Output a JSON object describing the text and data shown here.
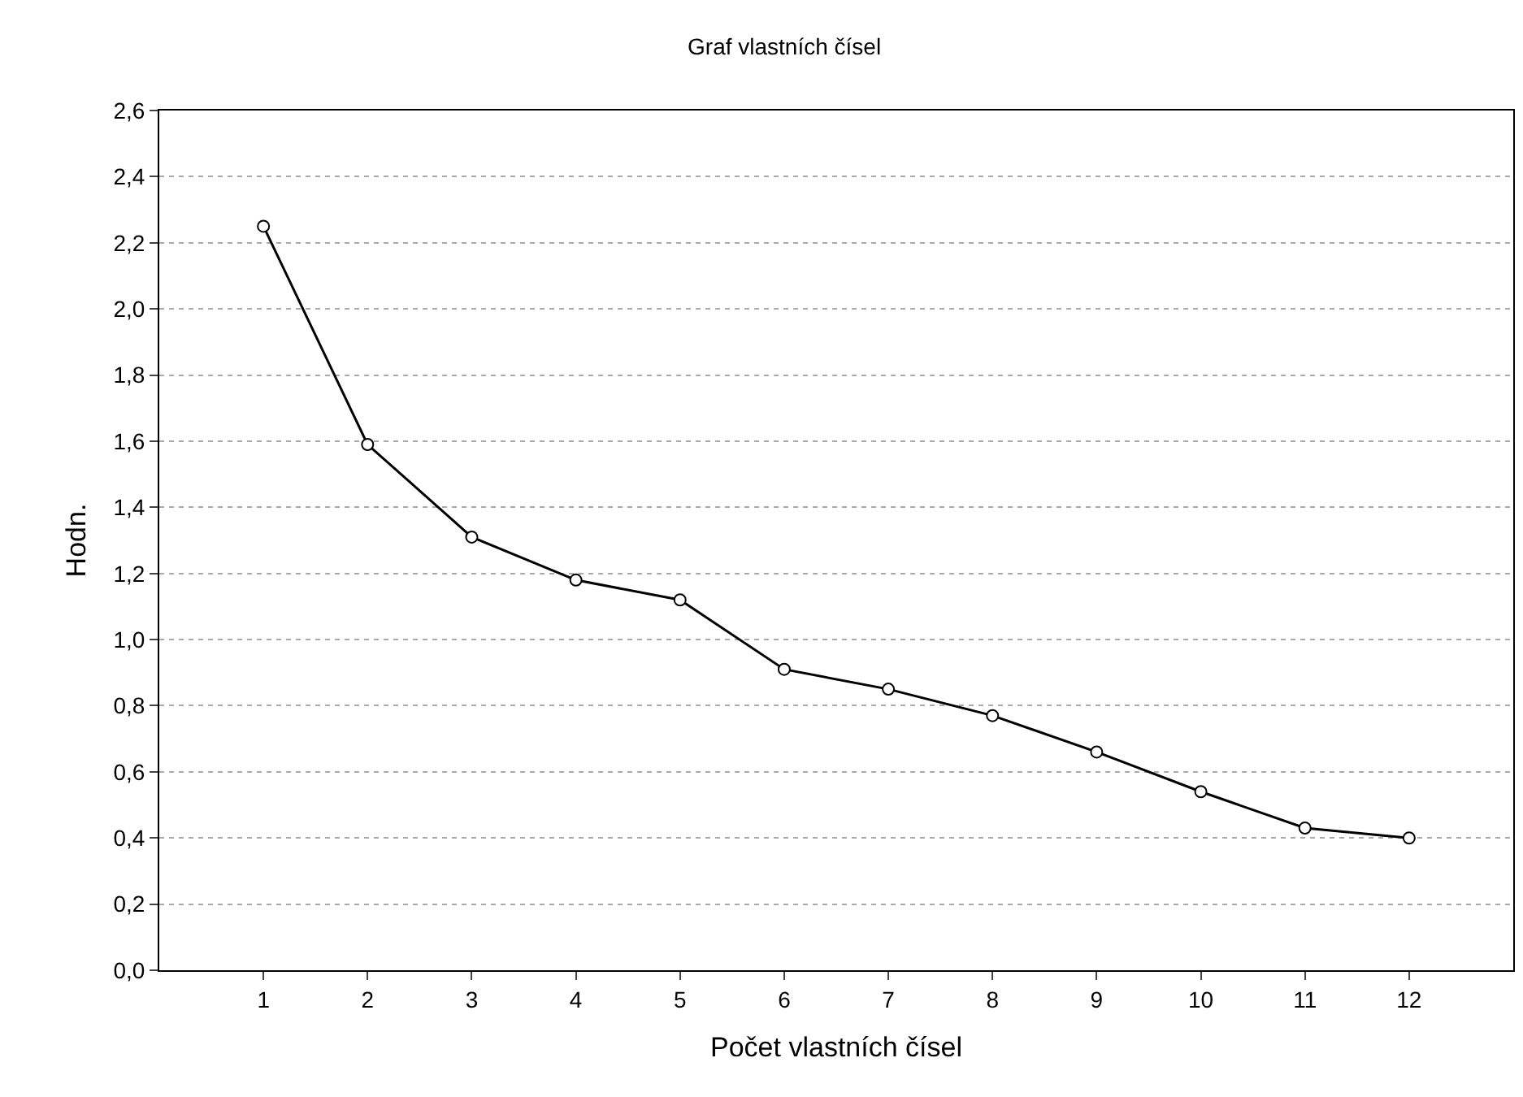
{
  "chart_data": {
    "type": "line",
    "title": "Graf vlastních čísel",
    "xlabel": "Počet vlastních čísel",
    "ylabel": "Hodn.",
    "x": [
      1,
      2,
      3,
      4,
      5,
      6,
      7,
      8,
      9,
      10,
      11,
      12
    ],
    "series": [
      {
        "color": "#000000",
        "values": [
          2.25,
          1.59,
          1.31,
          1.18,
          1.12,
          0.91,
          0.85,
          0.77,
          0.66,
          0.54,
          0.43,
          0.4
        ]
      }
    ],
    "xlim": [
      0,
      13
    ],
    "xticks": [
      1,
      2,
      3,
      4,
      5,
      6,
      7,
      8,
      9,
      10,
      11,
      12
    ],
    "ylim": [
      0,
      2.6
    ],
    "yticks": [
      {
        "value": 0,
        "label": "0,0"
      },
      {
        "value": 0.2,
        "label": "0,2"
      },
      {
        "value": 0.4,
        "label": "0,4"
      },
      {
        "value": 0.6,
        "label": "0,6"
      },
      {
        "value": 0.8,
        "label": "0,8"
      },
      {
        "value": 1,
        "label": "1,0"
      },
      {
        "value": 1.2,
        "label": "1,2"
      },
      {
        "value": 1.4,
        "label": "1,4"
      },
      {
        "value": 1.6,
        "label": "1,6"
      },
      {
        "value": 1.8,
        "label": "1,8"
      },
      {
        "value": 2,
        "label": "2,0"
      },
      {
        "value": 2.2,
        "label": "2,2"
      },
      {
        "value": 2.4,
        "label": "2,4"
      },
      {
        "value": 2.6,
        "label": "2,6"
      }
    ],
    "grid": "y",
    "marker": "circle",
    "line_style": "solid"
  }
}
